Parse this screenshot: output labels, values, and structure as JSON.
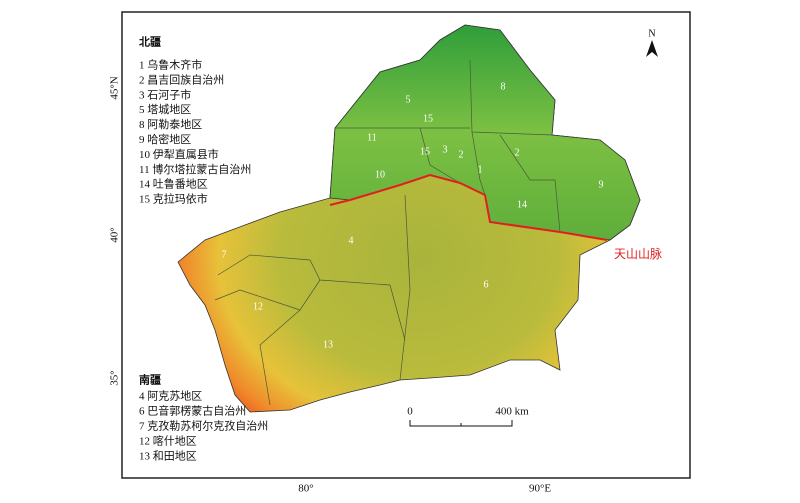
{
  "map": {
    "legend_north": {
      "title": "北疆",
      "items": [
        "1 乌鲁木齐市",
        "2 昌吉回族自治州",
        "3 石河子市",
        "5 塔城地区",
        "8 阿勒泰地区",
        "9 哈密地区",
        "10 伊犁直属县市",
        "11 博尔塔拉蒙古自治州",
        "14 吐鲁番地区",
        "15 克拉玛依市"
      ]
    },
    "legend_south": {
      "title": "南疆",
      "items": [
        "4 阿克苏地区",
        "6 巴音郭楞蒙古自治州",
        "7 克孜勒苏柯尔克孜自治州",
        "12 喀什地区",
        "13 和田地区"
      ]
    },
    "region_labels": [
      "8",
      "5",
      "15",
      "11",
      "15",
      "3",
      "2",
      "2",
      "1",
      "10",
      "9",
      "14",
      "4",
      "7",
      "6",
      "12",
      "13"
    ],
    "lat_labels": [
      "45°N",
      "40°",
      "35°"
    ],
    "lon_labels": [
      "80°",
      "90°E"
    ],
    "north": "N",
    "scale": {
      "start": "0",
      "end": "400 km"
    },
    "mountain": "天山山脉"
  }
}
